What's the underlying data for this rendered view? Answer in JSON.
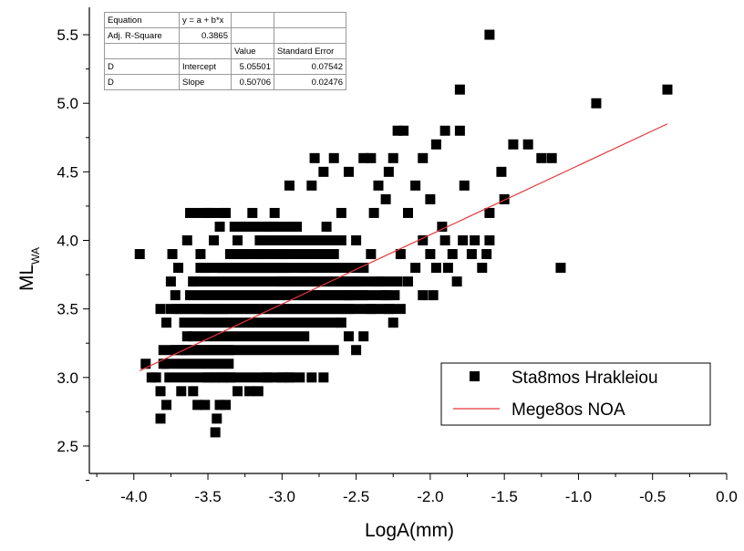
{
  "chart_data": {
    "type": "scatter",
    "xlabel": "LogA(mm)",
    "ylabel_main": "ML",
    "ylabel_sub": "WA",
    "xlim": [
      -4.3,
      0.0
    ],
    "ylim": [
      2.3,
      5.7
    ],
    "xticks": [
      "-4.0",
      "-3.5",
      "-3.0",
      "-2.5",
      "-2.0",
      "-1.5",
      "-1.0",
      "-0.5",
      "0.0"
    ],
    "yticks": [
      "2.5",
      "3.0",
      "3.5",
      "4.0",
      "4.5",
      "5.0",
      "5.5"
    ],
    "xtick_values": [
      -4.0,
      -3.5,
      -3.0,
      -2.5,
      -2.0,
      -1.5,
      -1.0,
      -0.5,
      0.0
    ],
    "ytick_values": [
      2.5,
      3.0,
      3.5,
      4.0,
      4.5,
      5.0,
      5.5
    ],
    "grid": false,
    "legend_position": "bottom-right",
    "series": [
      {
        "name": "Sta8mos Hrakleiou",
        "kind": "scatter",
        "marker": "square",
        "color": "#000000",
        "points": [
          [
            -3.96,
            3.9
          ],
          [
            -3.92,
            3.1
          ],
          [
            -3.88,
            3.0
          ],
          [
            -3.85,
            3.0
          ],
          [
            -3.82,
            2.7
          ],
          [
            -3.82,
            2.9
          ],
          [
            -3.78,
            2.8
          ],
          [
            -3.8,
            3.1
          ],
          [
            -3.78,
            3.4
          ],
          [
            -3.82,
            3.5
          ],
          [
            -3.75,
            3.7
          ],
          [
            -3.72,
            3.6
          ],
          [
            -3.74,
            3.9
          ],
          [
            -3.7,
            3.8
          ],
          [
            -3.68,
            2.9
          ],
          [
            -3.66,
            3.2
          ],
          [
            -3.64,
            3.3
          ],
          [
            -3.6,
            2.9
          ],
          [
            -3.57,
            2.8
          ],
          [
            -3.52,
            2.8
          ],
          [
            -3.45,
            2.6
          ],
          [
            -3.44,
            2.7
          ],
          [
            -3.42,
            2.8
          ],
          [
            -3.38,
            2.8
          ],
          [
            -3.5,
            3.0
          ],
          [
            -3.45,
            3.0
          ],
          [
            -3.4,
            3.0
          ],
          [
            -3.35,
            3.0
          ],
          [
            -3.3,
            2.9
          ],
          [
            -3.22,
            2.9
          ],
          [
            -3.16,
            2.9
          ],
          [
            -3.1,
            3.0
          ],
          [
            -3.0,
            3.0
          ],
          [
            -2.95,
            3.0
          ],
          [
            -2.8,
            3.0
          ],
          [
            -2.72,
            3.0
          ],
          [
            -3.64,
            4.0
          ],
          [
            -3.55,
            3.9
          ],
          [
            -3.5,
            4.2
          ],
          [
            -3.46,
            4.0
          ],
          [
            -3.52,
            3.8
          ],
          [
            -3.6,
            3.7
          ],
          [
            -3.42,
            4.1
          ],
          [
            -3.38,
            4.2
          ],
          [
            -3.3,
            4.0
          ],
          [
            -3.26,
            3.9
          ],
          [
            -3.2,
            4.2
          ],
          [
            -3.15,
            3.9
          ],
          [
            -3.1,
            4.1
          ],
          [
            -3.05,
            4.2
          ],
          [
            -3.0,
            3.9
          ],
          [
            -2.95,
            4.4
          ],
          [
            -2.9,
            4.1
          ],
          [
            -2.85,
            3.8
          ],
          [
            -2.8,
            4.4
          ],
          [
            -2.78,
            4.6
          ],
          [
            -2.72,
            4.5
          ],
          [
            -2.7,
            4.1
          ],
          [
            -2.65,
            4.6
          ],
          [
            -2.6,
            4.2
          ],
          [
            -2.55,
            4.5
          ],
          [
            -2.5,
            4.0
          ],
          [
            -2.45,
            4.6
          ],
          [
            -2.4,
            4.6
          ],
          [
            -2.38,
            4.2
          ],
          [
            -2.35,
            4.4
          ],
          [
            -2.3,
            4.3
          ],
          [
            -2.28,
            4.5
          ],
          [
            -2.25,
            4.6
          ],
          [
            -2.22,
            4.8
          ],
          [
            -2.18,
            4.8
          ],
          [
            -2.15,
            4.2
          ],
          [
            -2.1,
            4.4
          ],
          [
            -2.05,
            4.6
          ],
          [
            -2.0,
            4.3
          ],
          [
            -1.96,
            4.7
          ],
          [
            -1.9,
            4.8
          ],
          [
            -1.8,
            4.8
          ],
          [
            -1.8,
            5.1
          ],
          [
            -1.77,
            4.4
          ],
          [
            -1.6,
            5.5
          ],
          [
            -1.6,
            4.2
          ],
          [
            -1.52,
            4.5
          ],
          [
            -1.5,
            4.3
          ],
          [
            -1.44,
            4.7
          ],
          [
            -1.34,
            4.7
          ],
          [
            -1.25,
            4.6
          ],
          [
            -1.18,
            4.6
          ],
          [
            -1.12,
            3.8
          ],
          [
            -0.88,
            5.0
          ],
          [
            -0.4,
            5.1
          ],
          [
            -2.45,
            3.8
          ],
          [
            -2.4,
            3.9
          ],
          [
            -2.35,
            3.7
          ],
          [
            -2.3,
            3.6
          ],
          [
            -2.28,
            3.5
          ],
          [
            -2.25,
            3.4
          ],
          [
            -2.2,
            3.9
          ],
          [
            -2.15,
            3.7
          ],
          [
            -2.1,
            3.8
          ],
          [
            -2.05,
            4.0
          ],
          [
            -2.0,
            3.9
          ],
          [
            -1.98,
            3.6
          ],
          [
            -1.96,
            3.8
          ],
          [
            -1.92,
            4.1
          ],
          [
            -1.9,
            4.0
          ],
          [
            -1.88,
            3.8
          ],
          [
            -1.85,
            3.9
          ],
          [
            -1.82,
            3.7
          ],
          [
            -1.78,
            4.0
          ],
          [
            -1.72,
            3.9
          ],
          [
            -1.7,
            4.0
          ],
          [
            -1.62,
            3.9
          ],
          [
            -1.6,
            4.0
          ],
          [
            -1.65,
            3.8
          ],
          [
            -2.05,
            3.6
          ],
          [
            -2.55,
            3.6
          ],
          [
            -2.5,
            3.2
          ],
          [
            -2.45,
            3.3
          ],
          [
            -2.55,
            3.3
          ],
          [
            -2.6,
            3.4
          ],
          [
            -2.4,
            3.5
          ]
        ],
        "bars": [
          [
            -3.78,
            -3.36,
            3.1
          ],
          [
            -3.72,
            -3.36,
            3.2
          ],
          [
            -3.6,
            -2.85,
            3.3
          ],
          [
            -3.75,
            -2.2,
            3.5
          ],
          [
            -3.62,
            -2.24,
            3.6
          ],
          [
            -3.6,
            -2.22,
            3.7
          ],
          [
            -3.55,
            -2.45,
            3.8
          ],
          [
            -3.35,
            -2.65,
            3.9
          ],
          [
            -3.7,
            -3.4,
            3.5
          ],
          [
            -3.8,
            -2.65,
            3.2
          ],
          [
            -3.76,
            -2.88,
            3.0
          ],
          [
            -3.66,
            -2.65,
            3.4
          ],
          [
            -3.5,
            -2.55,
            3.5
          ],
          [
            -3.32,
            -2.95,
            4.1
          ],
          [
            -3.4,
            -3.0,
            3.8
          ],
          [
            -3.4,
            -2.98,
            3.8
          ],
          [
            -3.0,
            -2.5,
            3.7
          ],
          [
            -2.85,
            -2.45,
            3.6
          ],
          [
            -3.15,
            -2.75,
            4.0
          ],
          [
            -3.62,
            -3.4,
            4.2
          ],
          [
            -2.8,
            -2.6,
            4.0
          ]
        ]
      },
      {
        "name": "Mege8os NOA",
        "kind": "line",
        "color": "#e8363a",
        "x": [
          -3.96,
          -0.4
        ],
        "y": [
          3.05,
          4.85
        ]
      }
    ],
    "fit_table": {
      "rows": [
        [
          "Equation",
          "y = a + b*x",
          "",
          ""
        ],
        [
          "Adj. R-Square",
          "0.3865",
          "",
          ""
        ],
        [
          "",
          "",
          "Value",
          "Standard Error"
        ],
        [
          "D",
          "Intercept",
          "5.05501",
          "0.07542"
        ],
        [
          "D",
          "Slope",
          "0.50706",
          "0.02476"
        ]
      ]
    }
  }
}
